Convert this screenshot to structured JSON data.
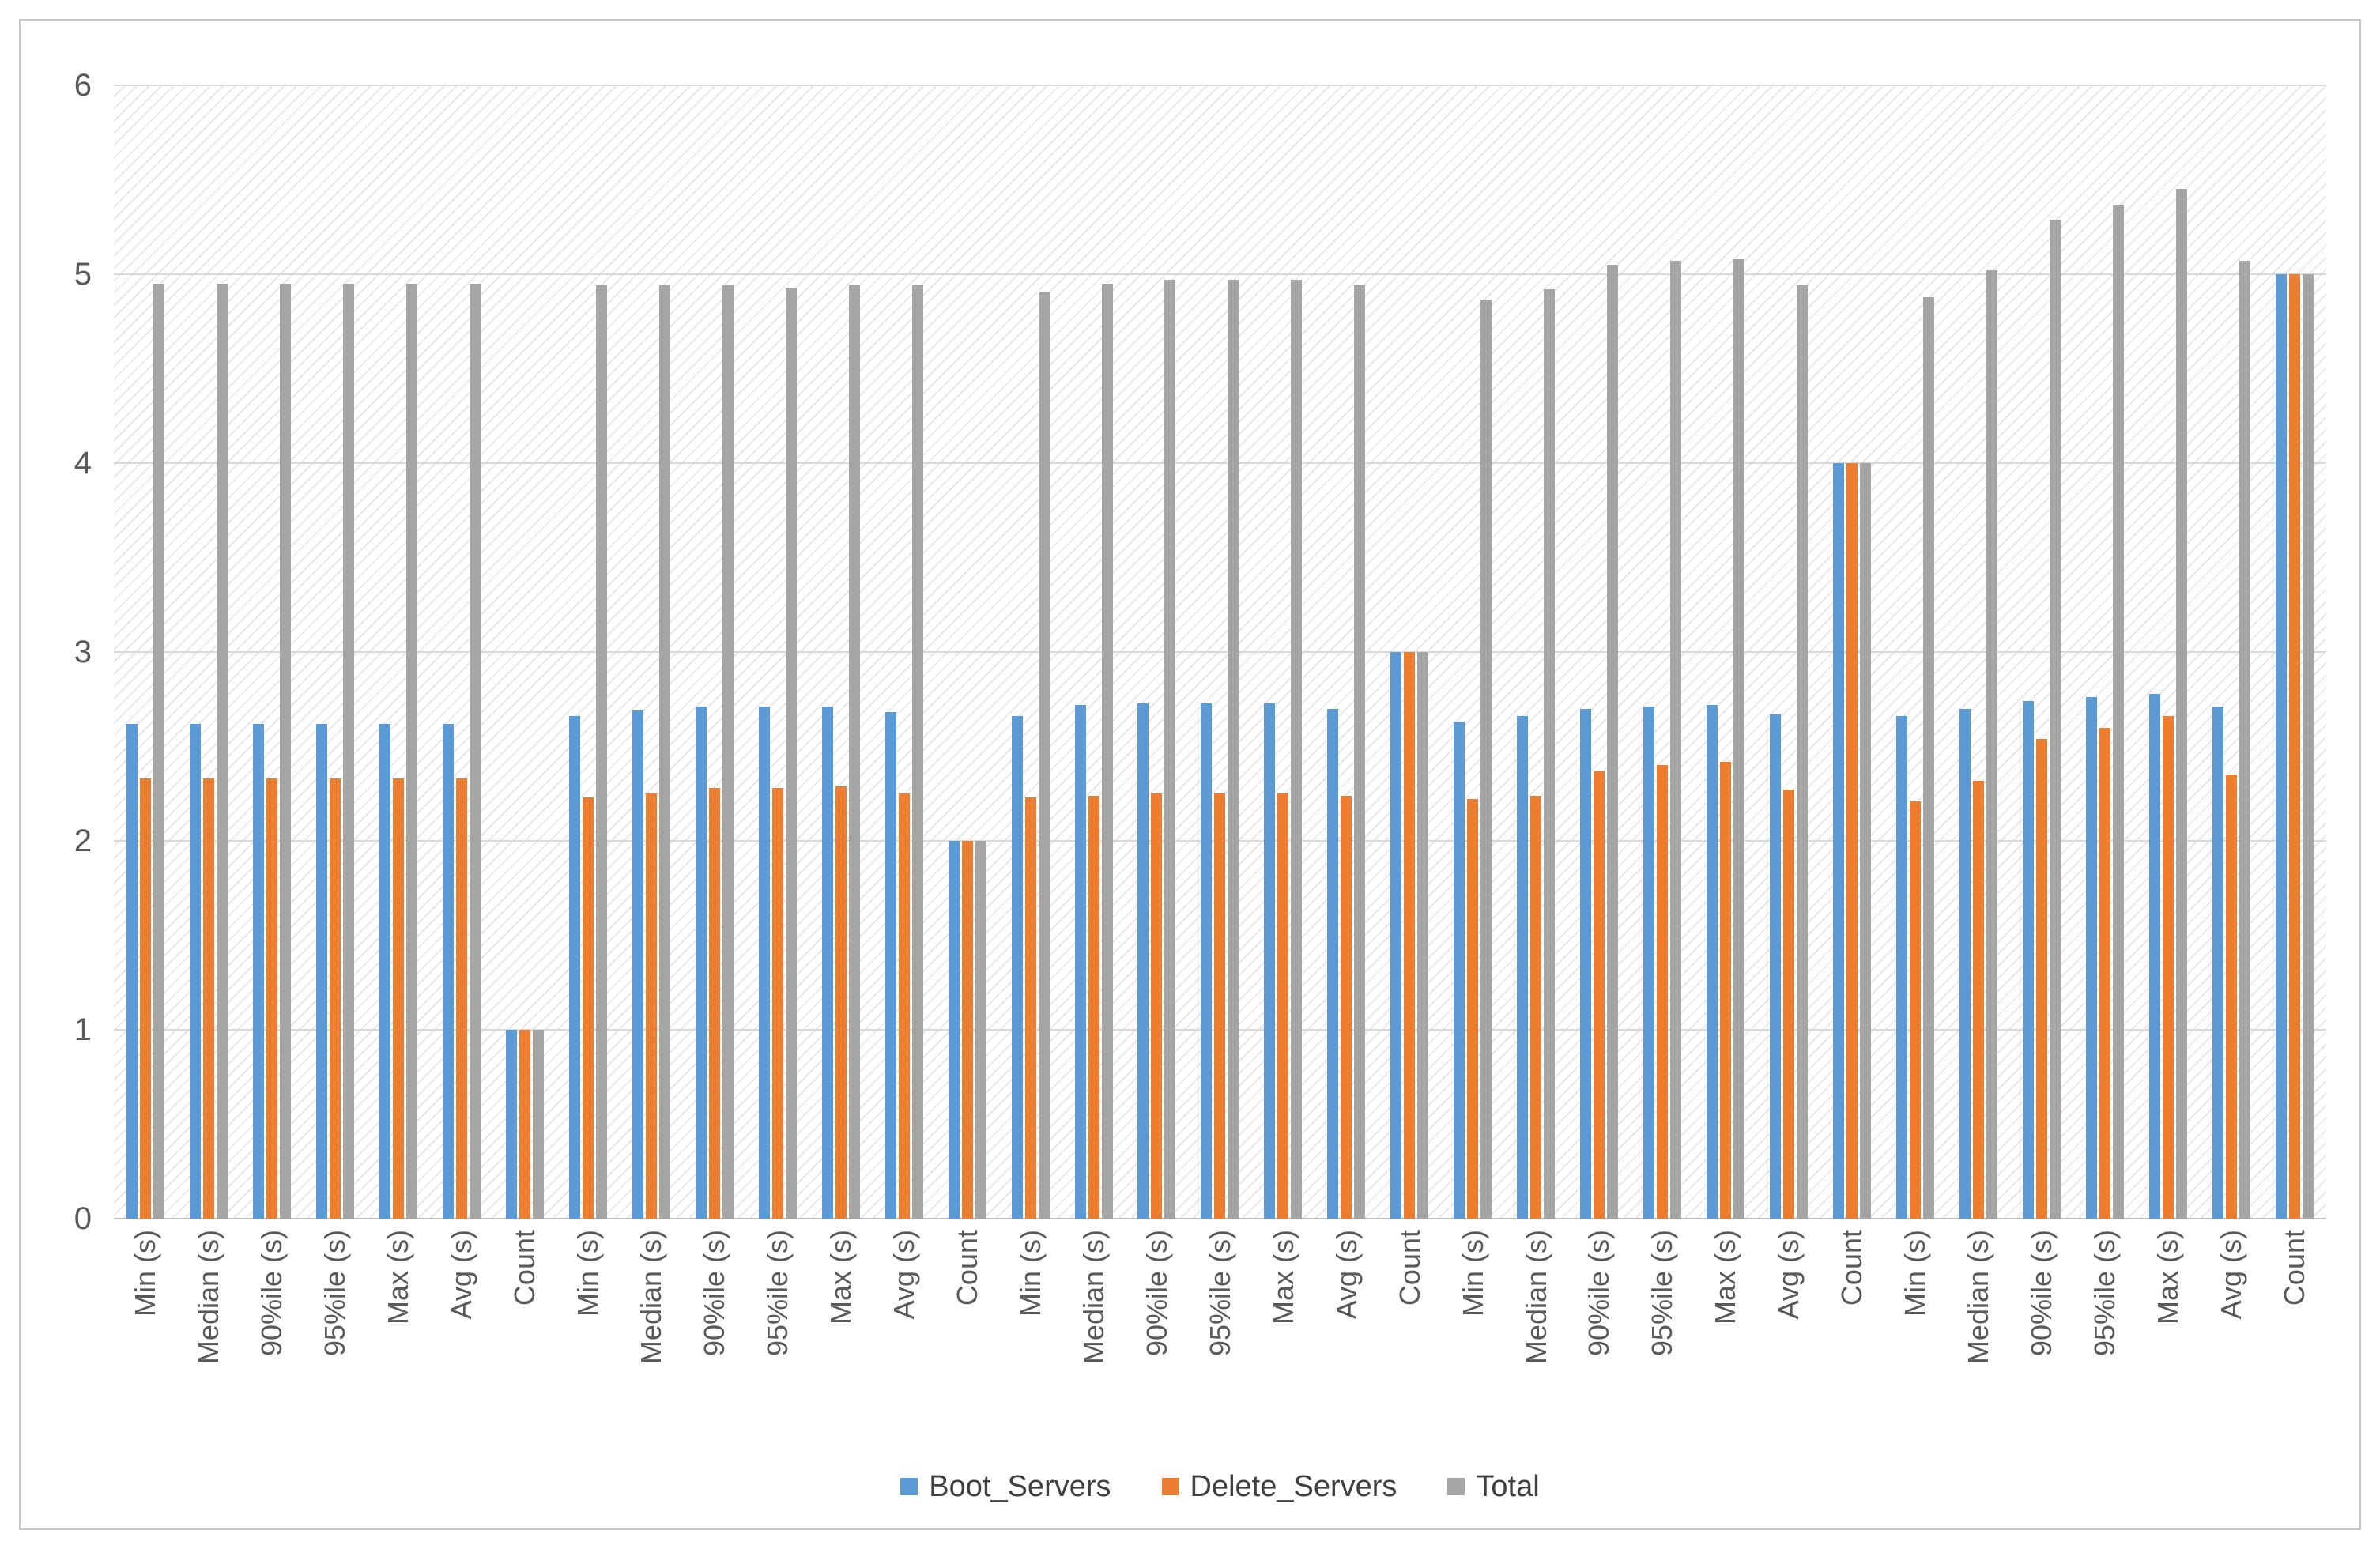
{
  "chart_data": {
    "type": "bar",
    "title": "",
    "xlabel": "",
    "ylabel": "",
    "ylim": [
      0,
      6
    ],
    "yticks": [
      0,
      1,
      2,
      3,
      4,
      5,
      6
    ],
    "grid": true,
    "legend_position": "bottom",
    "plot_area_fill": "diagonal-hatch",
    "categories": [
      "Min (s)",
      "Median (s)",
      "90%ile (s)",
      "95%ile (s)",
      "Max (s)",
      "Avg (s)",
      "Count",
      "Min (s)",
      "Median (s)",
      "90%ile (s)",
      "95%ile (s)",
      "Max (s)",
      "Avg (s)",
      "Count",
      "Min (s)",
      "Median (s)",
      "90%ile (s)",
      "95%ile (s)",
      "Max (s)",
      "Avg (s)",
      "Count",
      "Min (s)",
      "Median (s)",
      "90%ile (s)",
      "95%ile (s)",
      "Max (s)",
      "Avg (s)",
      "Count",
      "Min (s)",
      "Median (s)",
      "90%ile (s)",
      "95%ile (s)",
      "Max (s)",
      "Avg (s)",
      "Count"
    ],
    "series": [
      {
        "name": "Boot_Servers",
        "color": "#5B9BD5",
        "values": [
          2.62,
          2.62,
          2.62,
          2.62,
          2.62,
          2.62,
          1,
          2.66,
          2.69,
          2.71,
          2.71,
          2.71,
          2.68,
          2,
          2.66,
          2.72,
          2.73,
          2.73,
          2.73,
          2.7,
          3,
          2.63,
          2.66,
          2.7,
          2.71,
          2.72,
          2.67,
          4,
          2.66,
          2.7,
          2.74,
          2.76,
          2.78,
          2.71,
          5
        ]
      },
      {
        "name": "Delete_Servers",
        "color": "#ED7D31",
        "values": [
          2.33,
          2.33,
          2.33,
          2.33,
          2.33,
          2.33,
          1,
          2.23,
          2.25,
          2.28,
          2.28,
          2.29,
          2.25,
          2,
          2.23,
          2.24,
          2.25,
          2.25,
          2.25,
          2.24,
          3,
          2.22,
          2.24,
          2.37,
          2.4,
          2.42,
          2.27,
          4,
          2.21,
          2.32,
          2.54,
          2.6,
          2.66,
          2.35,
          5
        ]
      },
      {
        "name": "Total",
        "color": "#A5A5A5",
        "values": [
          4.95,
          4.95,
          4.95,
          4.95,
          4.95,
          4.95,
          1,
          4.94,
          4.94,
          4.94,
          4.93,
          4.94,
          4.94,
          2,
          4.91,
          4.95,
          4.97,
          4.97,
          4.97,
          4.94,
          3,
          4.86,
          4.92,
          5.05,
          5.07,
          5.08,
          4.94,
          4,
          4.88,
          5.02,
          5.29,
          5.37,
          5.45,
          5.07,
          5
        ]
      }
    ]
  }
}
